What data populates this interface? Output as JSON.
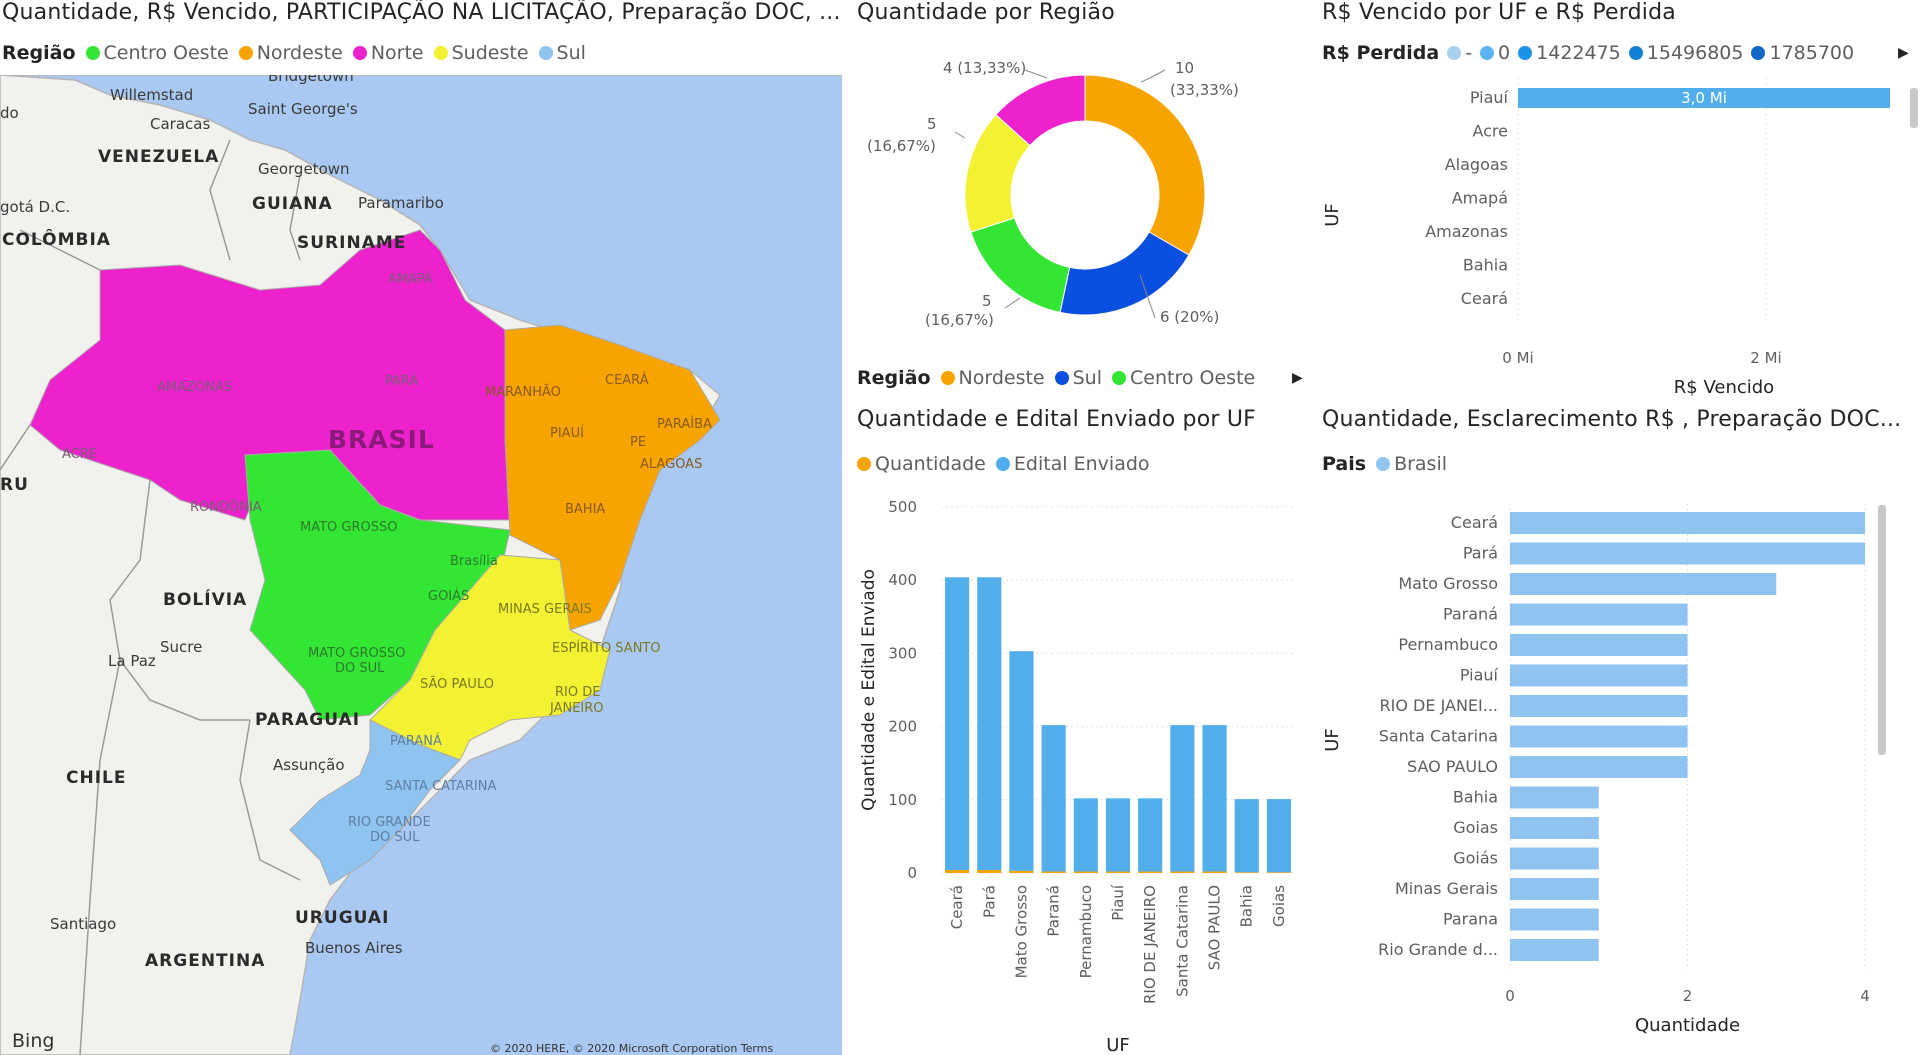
{
  "map_panel": {
    "title": "Quantidade, R$ Vencido, PARTICIPAÇÃO NA LICITAÇÃO, Preparação DOC, ...",
    "legend_title": "Região",
    "legend": [
      {
        "label": "Centro Oeste",
        "color": "#33e633"
      },
      {
        "label": "Nordeste",
        "color": "#f7a300"
      },
      {
        "label": "Norte",
        "color": "#ee22cc"
      },
      {
        "label": "Sudeste",
        "color": "#f2f233"
      },
      {
        "label": "Sul",
        "color": "#8fc3f0"
      }
    ],
    "labels": {
      "willemstad": "Willemstad",
      "bridgetown": "Bridgetown",
      "saint_georges": "Saint George's",
      "caracas": "Caracas",
      "venezuela": "VENEZUELA",
      "georgetown": "Georgetown",
      "guiana": "GUIANA",
      "paramaribo": "Paramaribo",
      "suriname": "SURINAME",
      "bogota": "gotá D.C.",
      "colombia": "COLÔMBIA",
      "do": "do",
      "amapa": "AMAPÁ",
      "amazonas": "AMAZONAS",
      "para": "PARÁ",
      "maranhao": "MARANHÃO",
      "ceara": "CEARÁ",
      "brasil": "BRASIL",
      "piaui": "PIAUÍ",
      "paraiba": "PARAÍBA",
      "pe": "PE",
      "alagoas": "ALAGOAS",
      "acre": "ACRE",
      "ru": "RU",
      "rondonia": "RONDÔNIA",
      "mato_grosso": "MATO GROSSO",
      "bahia": "BAHIA",
      "brasilia": "Brasília",
      "goias": "GOIÁS",
      "minas_gerais": "MINAS GERAIS",
      "la_paz": "La Paz",
      "bolivia": "BOLÍVIA",
      "espirito_santo": "ESPÍRITO SANTO",
      "sucre": "Sucre",
      "mato_grosso_sul_1": "MATO GROSSO",
      "mato_grosso_sul_2": "DO SUL",
      "sao_paulo": "SÃO PAULO",
      "rio_1": "RIO DE",
      "rio_2": "JANEIRO",
      "paraguai": "PARAGUAI",
      "parana": "PARANÁ",
      "chile": "CHILE",
      "assuncao": "Assunção",
      "santa_catarina": "SANTA CATARINA",
      "rio_grande_1": "RIO GRANDE",
      "rio_grande_2": "DO SUL",
      "santiago": "Santiago",
      "uruguai": "URUGUAI",
      "argentina": "ARGENTINA",
      "buenos_aires": "Buenos Aires",
      "bing": "Bing",
      "copyright": "© 2020 HERE, © 2020 Microsoft Corporation  Terms"
    },
    "colors": {
      "ocean": "#a9c8f2",
      "land": "#f1f1ee",
      "border": "#9a9a9a"
    }
  },
  "donut_panel": {
    "title": "Quantidade por Região",
    "legend_title": "Região",
    "legend": [
      {
        "label": "Nordeste",
        "color": "#f7a300"
      },
      {
        "label": "Sul",
        "color": "#0b4fe0"
      },
      {
        "label": "Centro Oeste",
        "color": "#33e633"
      }
    ],
    "slice_labels": {
      "nordeste": "10",
      "nordeste_pct": "(33,33%)",
      "sul": "6 (20%)",
      "centro_oeste": "5",
      "centro_oeste_pct": "(16,67%)",
      "sudeste": "5",
      "sudeste_pct": "(16,67%)",
      "norte": "4 (13,33%)"
    }
  },
  "uf_vencido_panel": {
    "title": "R$ Vencido por UF e R$ Perdida",
    "legend_title": "R$ Perdida",
    "legend": [
      {
        "label": "-",
        "color": "#a8d0f0"
      },
      {
        "label": "0",
        "color": "#5bb4ef"
      },
      {
        "label": "1422475",
        "color": "#1a94e4"
      },
      {
        "label": "15496805",
        "color": "#1380d8"
      },
      {
        "label": "1785700",
        "color": "#0f67cc"
      }
    ],
    "bar_label": "3,0 Mi"
  },
  "edital_panel": {
    "title": "Quantidade e Edital Enviado por UF",
    "legend": [
      {
        "label": "Quantidade",
        "color": "#f7a300"
      },
      {
        "label": "Edital Enviado",
        "color": "#52aeea"
      }
    ]
  },
  "esclarecimento_panel": {
    "title": "Quantidade, Esclarecimento R$ , Preparação DOC...",
    "legend_title": "Pais",
    "legend": [
      {
        "label": "Brasil",
        "color": "#8fc3f0"
      }
    ]
  },
  "chart_data": [
    {
      "type": "pie",
      "title": "Quantidade por Região",
      "categories": [
        "Nordeste",
        "Sul",
        "Centro Oeste",
        "Sudeste",
        "Norte"
      ],
      "values": [
        10,
        6,
        5,
        5,
        4
      ],
      "colors": [
        "#f7a300",
        "#0b4fe0",
        "#33e633",
        "#f2f233",
        "#ee22cc"
      ],
      "donut": true,
      "legend_position": "bottom"
    },
    {
      "type": "bar",
      "orientation": "horizontal",
      "title": "R$ Vencido por UF e R$ Perdida",
      "categories": [
        "Piauí",
        "Acre",
        "Alagoas",
        "Amapá",
        "Amazonas",
        "Bahia",
        "Ceará"
      ],
      "values": [
        3000000,
        0,
        0,
        0,
        0,
        0,
        0
      ],
      "xlabel": "R$ Vencido",
      "ylabel": "UF",
      "xlim": [
        0,
        3000000
      ],
      "xticks": [
        {
          "value": 0,
          "label": "0 Mi"
        },
        {
          "value": 2000000,
          "label": "2 Mi"
        }
      ],
      "bar_color": "#52aeea",
      "grid": true
    },
    {
      "type": "bar",
      "title": "Quantidade e Edital Enviado por UF",
      "categories": [
        "Ceará",
        "Pará",
        "Mato Grosso",
        "Paraná",
        "Pernambuco",
        "Piauí",
        "RIO DE JANEIRO",
        "Santa Catarina",
        "SAO PAULO",
        "Bahia",
        "Goias"
      ],
      "series": [
        {
          "name": "Quantidade",
          "values": [
            4,
            4,
            3,
            2,
            2,
            2,
            2,
            2,
            2,
            1,
            1
          ]
        },
        {
          "name": "Edital Enviado",
          "values": [
            400,
            400,
            300,
            200,
            100,
            100,
            100,
            200,
            200,
            100,
            100
          ]
        }
      ],
      "stacked": true,
      "xlabel": "UF",
      "ylabel": "Quantidade e Edital Enviado",
      "ylim": [
        0,
        500
      ],
      "yticks": [
        0,
        100,
        200,
        300,
        400,
        500
      ],
      "grid": true
    },
    {
      "type": "bar",
      "orientation": "horizontal",
      "title": "Quantidade, Esclarecimento R$ , Preparação DOC...",
      "categories": [
        "Ceará",
        "Pará",
        "Mato Grosso",
        "Paraná",
        "Pernambuco",
        "Piauí",
        "RIO DE JANEI...",
        "Santa Catarina",
        "SAO PAULO",
        "Bahia",
        "Goias",
        "Goiás",
        "Minas Gerais",
        "Parana",
        "Rio Grande d..."
      ],
      "values": [
        4,
        4,
        3,
        2,
        2,
        2,
        2,
        2,
        2,
        1,
        1,
        1,
        1,
        1,
        1
      ],
      "xlabel": "Quantidade",
      "ylabel": "UF",
      "xlim": [
        0,
        4
      ],
      "xticks": [
        0,
        2,
        4
      ],
      "bar_color": "#8fc3f0",
      "grid": true
    }
  ]
}
